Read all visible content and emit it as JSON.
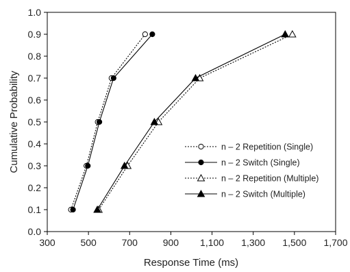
{
  "chart_data": {
    "type": "line",
    "title": "",
    "xlabel": "Response Time (ms)",
    "ylabel": "Cumulative Probability",
    "xlim": [
      300,
      1700
    ],
    "ylim": [
      0.0,
      1.0
    ],
    "x_ticks": [
      300,
      500,
      700,
      900,
      1100,
      1300,
      1500,
      1700
    ],
    "x_tick_labels": [
      "300",
      "500",
      "700",
      "900",
      "1,100",
      "1,300",
      "1,500",
      "1,700"
    ],
    "y_ticks": [
      0.0,
      0.1,
      0.2,
      0.3,
      0.4,
      0.5,
      0.6,
      0.7,
      0.8,
      0.9,
      1.0
    ],
    "y_tick_labels": [
      "0.0",
      "0.1",
      "0.2",
      "0.3",
      "0.4",
      "0.5",
      "0.6",
      "0.7",
      "0.8",
      "0.9",
      "1.0"
    ],
    "grid": false,
    "legend_position": "right",
    "series": [
      {
        "name": "n – 2 Repetition (Single)",
        "line_style": "dotted",
        "marker": "circle-open",
        "x": [
          415,
          490,
          545,
          612,
          775
        ],
        "y": [
          0.1,
          0.3,
          0.5,
          0.7,
          0.9
        ]
      },
      {
        "name": "n – 2 Switch (Single)",
        "line_style": "solid",
        "marker": "circle-filled",
        "x": [
          425,
          497,
          553,
          622,
          810
        ],
        "y": [
          0.1,
          0.3,
          0.5,
          0.7,
          0.9
        ]
      },
      {
        "name": "n – 2 Repetition (Multiple)",
        "line_style": "dotted",
        "marker": "triangle-open",
        "x": [
          550,
          690,
          840,
          1040,
          1490
        ],
        "y": [
          0.1,
          0.3,
          0.5,
          0.7,
          0.9
        ]
      },
      {
        "name": "n – 2 Switch (Multiple)",
        "line_style": "solid",
        "marker": "triangle-filled",
        "x": [
          543,
          675,
          820,
          1020,
          1455
        ],
        "y": [
          0.1,
          0.3,
          0.5,
          0.7,
          0.9
        ]
      }
    ]
  }
}
